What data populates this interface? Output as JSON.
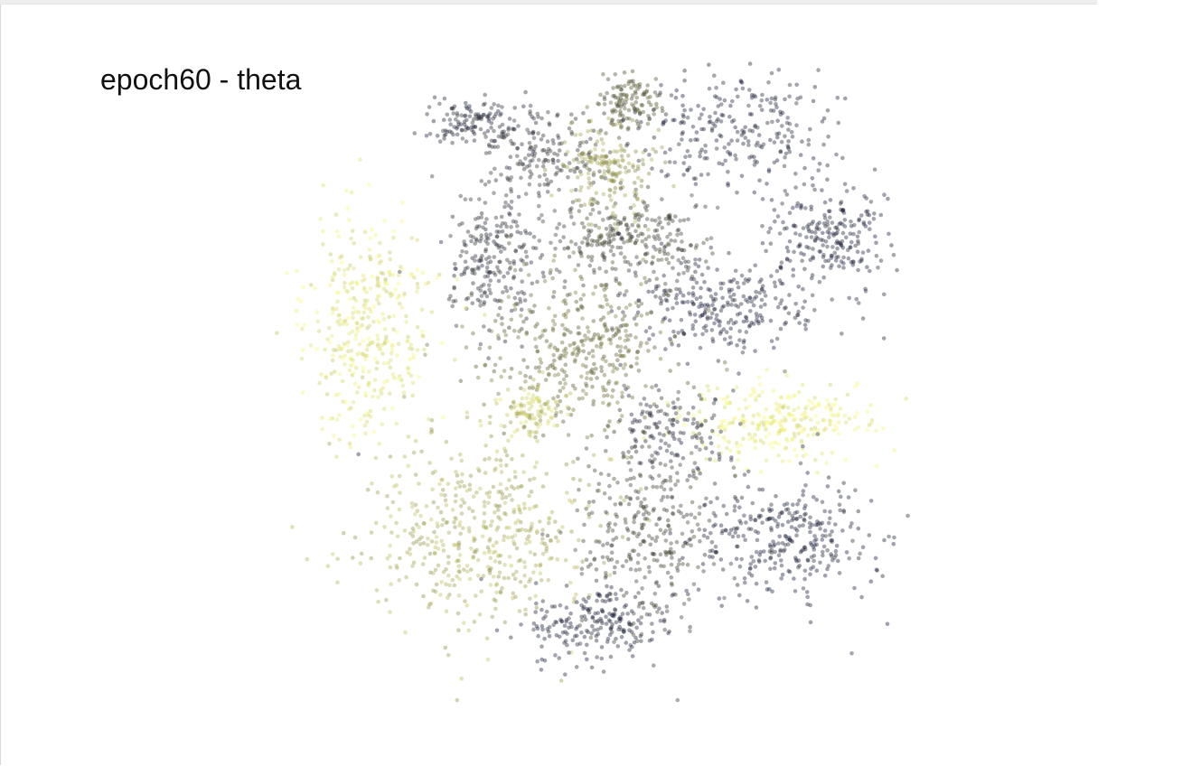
{
  "chart_data": {
    "type": "scatter",
    "title": "epoch60 - theta",
    "xlabel": "",
    "ylabel": "",
    "grid": false,
    "legend": "none",
    "colormap": "cividis-like",
    "colors": {
      "low": "#1c2140",
      "mid": "#5b5b31",
      "high": "#f9fb7a"
    },
    "point_alpha": 0.42,
    "xlim": [
      -100,
      100
    ],
    "ylim": [
      -100,
      100
    ],
    "clusters": [
      {
        "center": [
          -37,
          82
        ],
        "spread": [
          10,
          5
        ],
        "theta": 0.1,
        "count": 130
      },
      {
        "center": [
          -15,
          72
        ],
        "spread": [
          13,
          9
        ],
        "theta": 0.2,
        "count": 170
      },
      {
        "center": [
          12,
          88
        ],
        "spread": [
          7,
          6
        ],
        "theta": 0.45,
        "count": 120
      },
      {
        "center": [
          5,
          68
        ],
        "spread": [
          9,
          11
        ],
        "theta": 0.7,
        "count": 180
      },
      {
        "center": [
          48,
          80
        ],
        "spread": [
          20,
          12
        ],
        "theta": 0.05,
        "count": 260
      },
      {
        "center": [
          -30,
          40
        ],
        "spread": [
          10,
          15
        ],
        "theta": 0.15,
        "count": 240
      },
      {
        "center": [
          10,
          45
        ],
        "spread": [
          18,
          9
        ],
        "theta": 0.3,
        "count": 280
      },
      {
        "center": [
          75,
          45
        ],
        "spread": [
          12,
          11
        ],
        "theta": 0.05,
        "count": 230
      },
      {
        "center": [
          42,
          25
        ],
        "spread": [
          20,
          10
        ],
        "theta": 0.05,
        "count": 280
      },
      {
        "center": [
          -70,
          18
        ],
        "spread": [
          14,
          22
        ],
        "theta": 0.92,
        "count": 380
      },
      {
        "center": [
          -5,
          12
        ],
        "spread": [
          22,
          17
        ],
        "theta": 0.55,
        "count": 400
      },
      {
        "center": [
          -18,
          -8
        ],
        "spread": [
          7,
          6
        ],
        "theta": 0.85,
        "count": 90
      },
      {
        "center": [
          58,
          -12
        ],
        "spread": [
          20,
          8
        ],
        "theta": 0.95,
        "count": 280
      },
      {
        "center": [
          25,
          -15
        ],
        "spread": [
          12,
          8
        ],
        "theta": 0.1,
        "count": 130
      },
      {
        "center": [
          -35,
          -45
        ],
        "spread": [
          24,
          20
        ],
        "theta": 0.75,
        "count": 500
      },
      {
        "center": [
          17,
          -45
        ],
        "spread": [
          15,
          20
        ],
        "theta": 0.3,
        "count": 320
      },
      {
        "center": [
          60,
          -48
        ],
        "spread": [
          20,
          13
        ],
        "theta": 0.05,
        "count": 330
      },
      {
        "center": [
          0,
          -75
        ],
        "spread": [
          15,
          7
        ],
        "theta": 0.05,
        "count": 210
      },
      {
        "center": [
          -75,
          -20
        ],
        "spread": [
          2,
          2
        ],
        "theta": 0.05,
        "count": 1
      },
      {
        "center": [
          90,
          14
        ],
        "spread": [
          1,
          1
        ],
        "theta": 0.05,
        "count": 1
      }
    ]
  }
}
